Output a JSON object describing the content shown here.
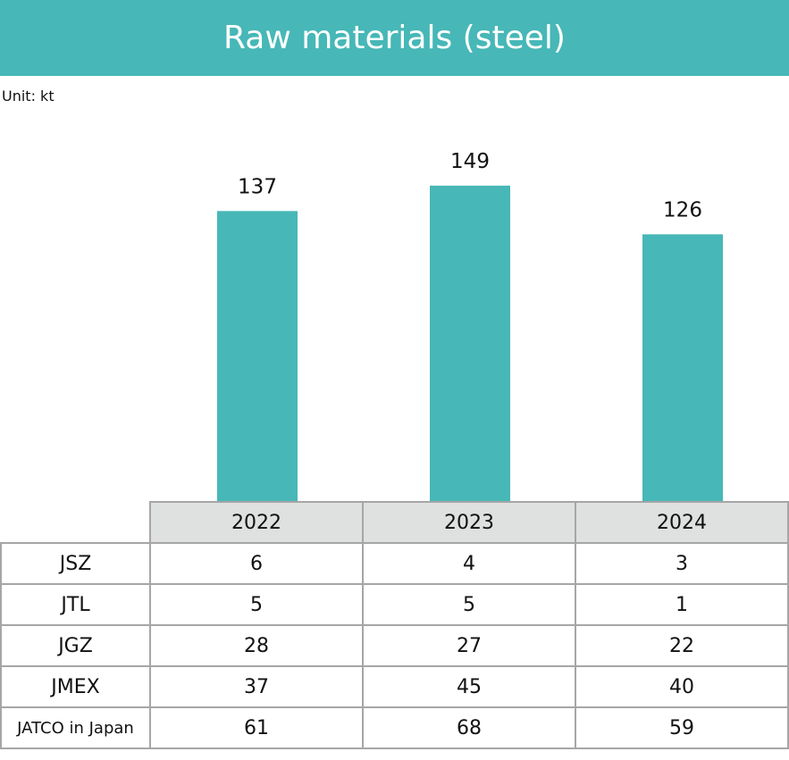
{
  "title": "Raw materials (steel)",
  "unit_label": "Unit: kt",
  "colors": {
    "bar": "#47b7b7",
    "header_bg": "#47b7b7",
    "table_header_bg": "#dfe0e0",
    "border": "#a6a6a6"
  },
  "chart_data": {
    "type": "bar",
    "title": "Raw materials (steel)",
    "categories": [
      "2022",
      "2023",
      "2024"
    ],
    "values": [
      137,
      149,
      126
    ],
    "ylabel": "Unit: kt",
    "grid": false,
    "data_labels": true
  },
  "table": {
    "columns": [
      "2022",
      "2023",
      "2024"
    ],
    "rows": [
      {
        "label": "JSZ",
        "values": [
          "6",
          "4",
          "3"
        ]
      },
      {
        "label": "JTL",
        "values": [
          "5",
          "5",
          "1"
        ]
      },
      {
        "label": "JGZ",
        "values": [
          "28",
          "27",
          "22"
        ]
      },
      {
        "label": "JMEX",
        "values": [
          "37",
          "45",
          "40"
        ]
      },
      {
        "label": "JATCO in Japan",
        "values": [
          "61",
          "68",
          "59"
        ]
      }
    ]
  }
}
